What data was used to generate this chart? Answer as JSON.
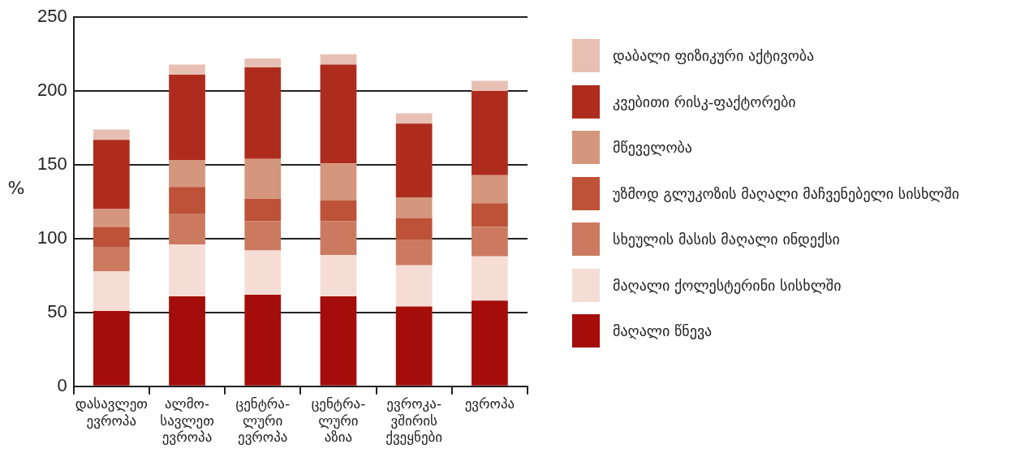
{
  "chart_data": {
    "type": "bar",
    "stacked": true,
    "ylabel": "%",
    "categories": [
      "დასავლეთ\nევროპა",
      "ალმო-\nსავლეთ\nევროპა",
      "ცენტრა-\nლური\nევროპა",
      "ცენტრა-\nლური\nაზია",
      "ევროკა-\nვშირის\nქვეყნები",
      "ევროპა"
    ],
    "series": [
      {
        "name": "მაღალი წნევა",
        "color": "#a50d0a",
        "values": [
          51,
          61,
          62,
          61,
          54,
          58
        ]
      },
      {
        "name": "მაღალი ქოლესტერინი სისხლში",
        "color": "#f5ddd6",
        "values": [
          27,
          35,
          30,
          28,
          28,
          30
        ]
      },
      {
        "name": "სხეულის მასის მაღალი ინდექსი",
        "color": "#cb7a60",
        "values": [
          16,
          21,
          20,
          23,
          17,
          20
        ]
      },
      {
        "name": "უზმოდ გლუკოზის მაღალი მაჩვენებელი სისხლში",
        "color": "#bd5238",
        "values": [
          14,
          18,
          15,
          14,
          15,
          16
        ]
      },
      {
        "name": "მწეველობა",
        "color": "#d4967c",
        "values": [
          12,
          18,
          27,
          25,
          14,
          19
        ]
      },
      {
        "name": "კვებითი რისკ-ფაქტორები",
        "color": "#ae2c1e",
        "values": [
          47,
          58,
          62,
          67,
          50,
          57
        ]
      },
      {
        "name": "დაბალი ფიზიკური აქტივობა",
        "color": "#e8c0b3",
        "values": [
          7,
          7,
          6,
          7,
          7,
          7
        ]
      }
    ],
    "ylim": [
      0,
      250
    ],
    "yticks": [
      0,
      50,
      100,
      150,
      200,
      250
    ],
    "grid": "y",
    "legend": "right"
  }
}
